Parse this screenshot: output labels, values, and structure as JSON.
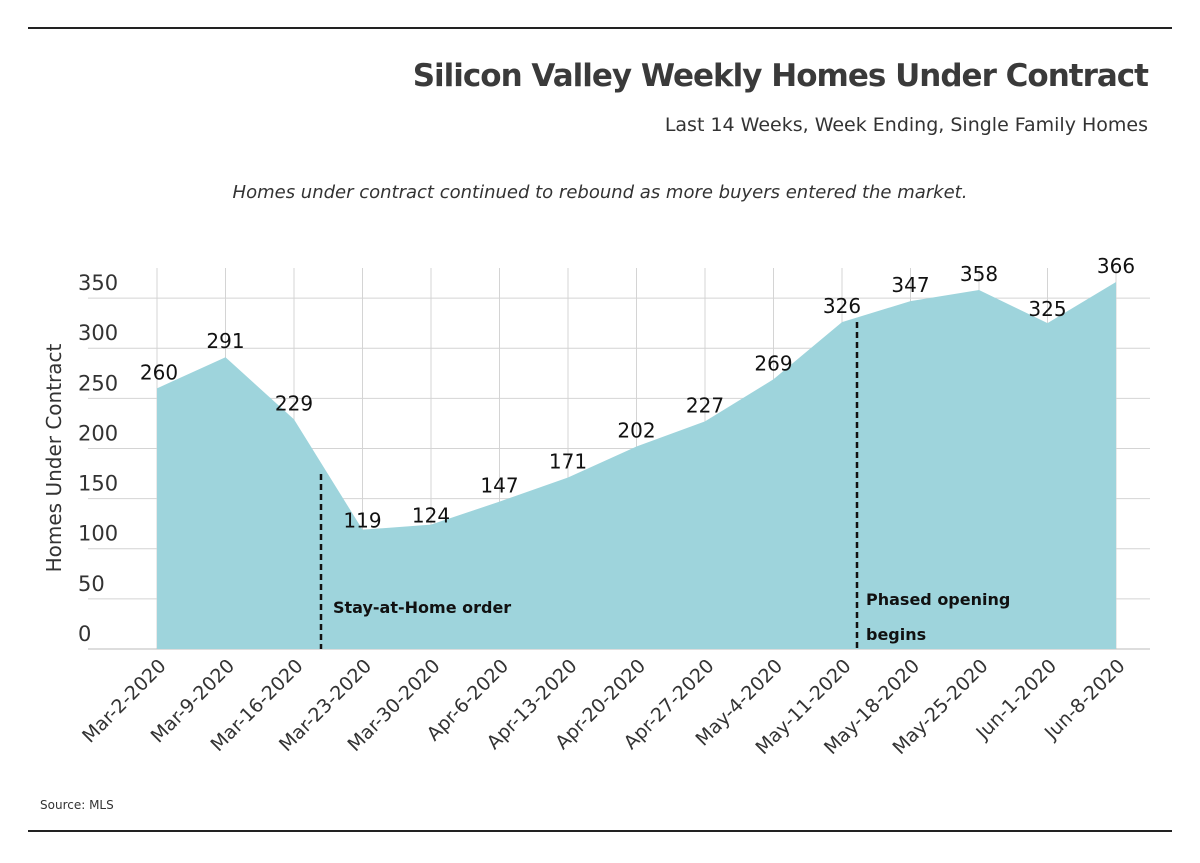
{
  "header": {
    "title": "Silicon Valley Weekly Homes Under Contract",
    "subtitle": "Last 14 Weeks, Week Ending, Single Family Homes",
    "caption": "Homes under contract continued to rebound as more buyers entered the market."
  },
  "footer": {
    "source": "Source: MLS"
  },
  "colors": {
    "fill": "#9ed4dc",
    "grid": "#d4d4d4",
    "text": "#222222"
  },
  "chart_data": {
    "type": "area",
    "title": "Silicon Valley Weekly Homes Under Contract",
    "subtitle": "Last 14 Weeks, Week Ending, Single Family Homes",
    "xlabel": "",
    "ylabel": "Homes Under Contract",
    "categories": [
      "Mar-2-2020",
      "Mar-9-2020",
      "Mar-16-2020",
      "Mar-23-2020",
      "Mar-30-2020",
      "Apr-6-2020",
      "Apr-13-2020",
      "Apr-20-2020",
      "Apr-27-2020",
      "May-4-2020",
      "May-11-2020",
      "May-18-2020",
      "May-25-2020",
      "Jun-1-2020",
      "Jun-8-2020"
    ],
    "values": [
      260,
      291,
      229,
      119,
      124,
      147,
      171,
      202,
      227,
      269,
      326,
      347,
      358,
      325,
      366
    ],
    "ylim": [
      0,
      380
    ],
    "yticks": [
      0,
      50,
      100,
      150,
      200,
      250,
      300,
      350
    ],
    "grid": true,
    "annotations": [
      {
        "text": "Stay-at-Home order",
        "x": 2.45
      },
      {
        "text": "Phased opening",
        "text2": "begins",
        "x": 10.2
      }
    ]
  }
}
